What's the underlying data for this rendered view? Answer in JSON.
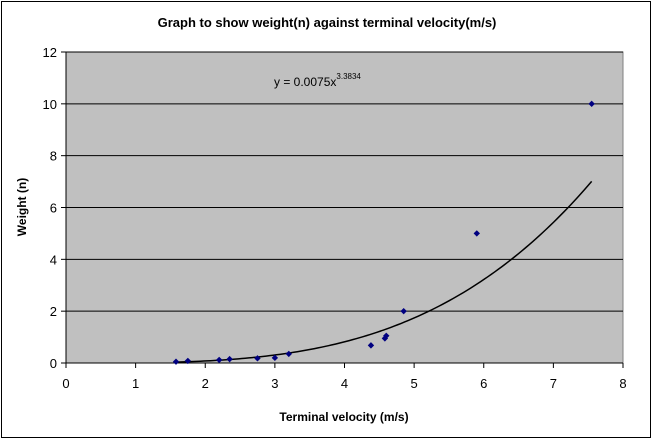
{
  "chart_data": {
    "type": "scatter",
    "title": "Graph to show weight(n) against terminal velocity(m/s)",
    "xlabel": "Terminal velocity (m/s)",
    "ylabel": "Weight (n)",
    "xlim": [
      0,
      8
    ],
    "ylim": [
      0,
      12
    ],
    "x_ticks": [
      0,
      1,
      2,
      3,
      4,
      5,
      6,
      7,
      8
    ],
    "y_ticks": [
      0,
      2,
      4,
      6,
      8,
      10,
      12
    ],
    "grid": "horizontal",
    "plot_background": "#c0c0c0",
    "marker_color": "#000080",
    "trendline_color": "#000000",
    "points": [
      {
        "x": 1.58,
        "y": 0.05
      },
      {
        "x": 1.75,
        "y": 0.08
      },
      {
        "x": 2.2,
        "y": 0.12
      },
      {
        "x": 2.35,
        "y": 0.15
      },
      {
        "x": 2.75,
        "y": 0.18
      },
      {
        "x": 3.0,
        "y": 0.2
      },
      {
        "x": 3.2,
        "y": 0.35
      },
      {
        "x": 4.38,
        "y": 0.68
      },
      {
        "x": 4.58,
        "y": 0.95
      },
      {
        "x": 4.6,
        "y": 1.05
      },
      {
        "x": 4.85,
        "y": 2.0
      },
      {
        "x": 5.9,
        "y": 5.0
      },
      {
        "x": 7.55,
        "y": 10.0
      }
    ],
    "trendline": {
      "type": "power",
      "coefficient": 0.0075,
      "exponent": 3.3834,
      "x_range": [
        1.58,
        7.55
      ],
      "equation_base": "y = 0.0075x",
      "equation_exponent": "3.3834"
    }
  }
}
